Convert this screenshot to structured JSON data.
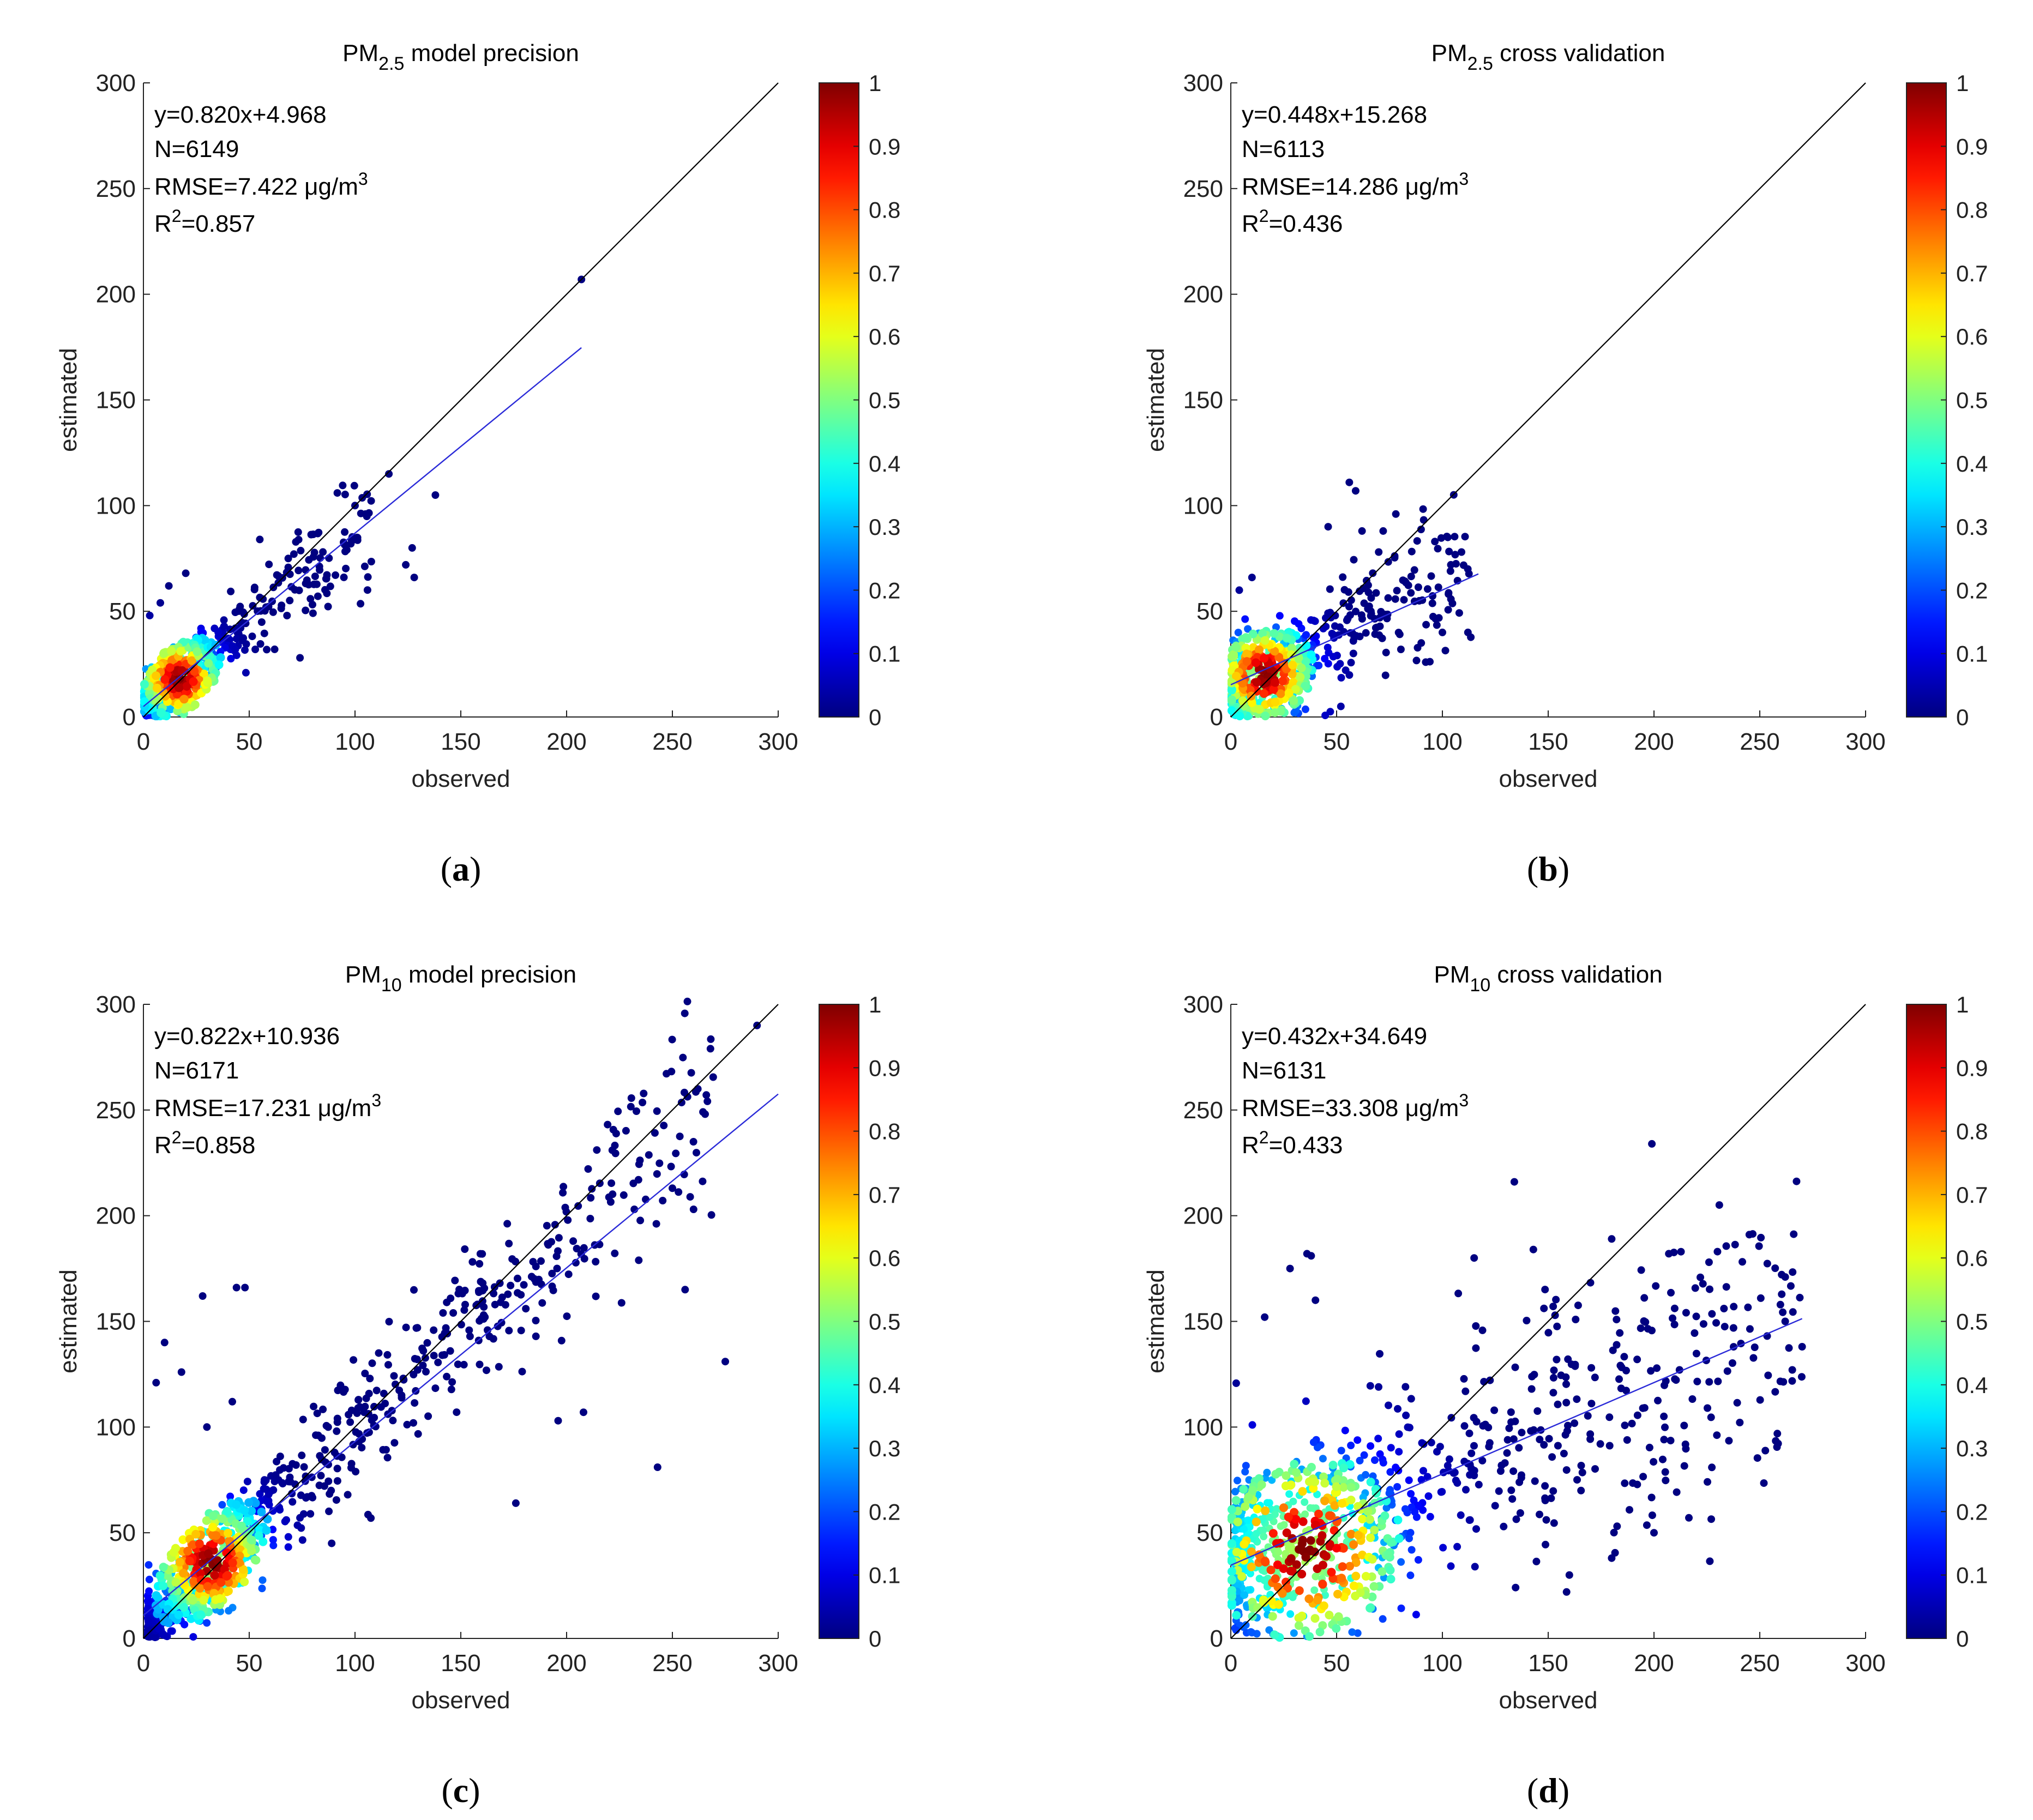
{
  "panels": [
    {
      "title_pre": "PM",
      "title_sub": "2.5",
      "title_post": " model precision",
      "eq": "y=0.820x+4.968",
      "n": "N=6149",
      "rmse_pre": "RMSE=7.422 μg/m",
      "rmse_sup": "3",
      "r2_pre": "R",
      "r2_sup": "2",
      "r2_post": "=0.857",
      "caption_open": "(",
      "caption_letter": "a",
      "caption_close": ")"
    },
    {
      "title_pre": "PM",
      "title_sub": "2.5",
      "title_post": " cross validation",
      "eq": "y=0.448x+15.268",
      "n": "N=6113",
      "rmse_pre": "RMSE=14.286 μg/m",
      "rmse_sup": "3",
      "r2_pre": "R",
      "r2_sup": "2",
      "r2_post": "=0.436",
      "caption_open": "(",
      "caption_letter": "b",
      "caption_close": ")"
    },
    {
      "title_pre": "PM",
      "title_sub": "10",
      "title_post": " model precision",
      "eq": "y=0.822x+10.936",
      "n": "N=6171",
      "rmse_pre": "RMSE=17.231 μg/m",
      "rmse_sup": "3",
      "r2_pre": "R",
      "r2_sup": "2",
      "r2_post": "=0.858",
      "caption_open": "(",
      "caption_letter": "c",
      "caption_close": ")"
    },
    {
      "title_pre": "PM",
      "title_sub": "10",
      "title_post": " cross validation",
      "eq": "y=0.432x+34.649",
      "n": "N=6131",
      "rmse_pre": "RMSE=33.308 μg/m",
      "rmse_sup": "3",
      "r2_pre": "R",
      "r2_sup": "2",
      "r2_post": "=0.433",
      "caption_open": "(",
      "caption_letter": "d",
      "caption_close": ")"
    }
  ],
  "chart_data": [
    {
      "type": "scatter",
      "title": "PM2.5 model precision",
      "xlabel": "observed",
      "ylabel": "estimated",
      "xlim": [
        0,
        300
      ],
      "ylim": [
        0,
        300
      ],
      "xticks": [
        "0",
        "50",
        "100",
        "150",
        "200",
        "250",
        "300"
      ],
      "yticks": [
        "0",
        "50",
        "100",
        "150",
        "200",
        "250",
        "300"
      ],
      "fit": {
        "slope": 0.82,
        "intercept": 4.968,
        "x_range": [
          0,
          207
        ]
      },
      "one_to_one": [
        0,
        300
      ],
      "colorbar": {
        "ticks": [
          "0",
          "0.1",
          "0.2",
          "0.3",
          "0.4",
          "0.5",
          "0.6",
          "0.7",
          "0.8",
          "0.9",
          "1"
        ],
        "range": [
          0,
          1
        ],
        "colors": [
          "#00008f",
          "#0000ff",
          "#0080ff",
          "#00ffff",
          "#80ff80",
          "#ffff00",
          "#ff8000",
          "#ff0000",
          "#800000"
        ]
      },
      "density_center": [
        17,
        18
      ],
      "cloud": {
        "xmin": 1,
        "xmax": 108,
        "slope": 0.82,
        "intercept": 4.968,
        "spread": 9,
        "count": 380,
        "seed": 11
      },
      "outliers": [
        [
          207,
          207
        ],
        [
          116,
          115
        ],
        [
          138,
          105
        ],
        [
          124,
          72
        ],
        [
          128,
          66
        ],
        [
          127,
          80
        ],
        [
          74,
          28
        ],
        [
          62,
          32
        ],
        [
          20,
          68
        ],
        [
          8,
          54
        ],
        [
          3,
          48
        ],
        [
          12,
          62
        ],
        [
          55,
          84
        ],
        [
          100,
          100
        ],
        [
          105,
          96
        ]
      ]
    },
    {
      "type": "scatter",
      "title": "PM2.5 cross validation",
      "xlabel": "observed",
      "ylabel": "estimated",
      "xlim": [
        0,
        300
      ],
      "ylim": [
        0,
        300
      ],
      "xticks": [
        "0",
        "50",
        "100",
        "150",
        "200",
        "250",
        "300"
      ],
      "yticks": [
        "0",
        "50",
        "100",
        "150",
        "200",
        "250",
        "300"
      ],
      "fit": {
        "slope": 0.448,
        "intercept": 15.268,
        "x_range": [
          0,
          117
        ]
      },
      "one_to_one": [
        0,
        300
      ],
      "colorbar": {
        "ticks": [
          "0",
          "0.1",
          "0.2",
          "0.3",
          "0.4",
          "0.5",
          "0.6",
          "0.7",
          "0.8",
          "0.9",
          "1"
        ],
        "range": [
          0,
          1
        ],
        "colors": [
          "#00008f",
          "#0000ff",
          "#0080ff",
          "#00ffff",
          "#80ff80",
          "#ffff00",
          "#ff8000",
          "#ff0000",
          "#800000"
        ]
      },
      "density_center": [
        16,
        20
      ],
      "cloud": {
        "xmin": 1,
        "xmax": 115,
        "slope": 0.448,
        "intercept": 15.268,
        "spread": 14,
        "count": 420,
        "seed": 23
      },
      "outliers": [
        [
          56,
          111
        ],
        [
          59,
          107
        ],
        [
          46,
          90
        ],
        [
          62,
          88
        ],
        [
          72,
          88
        ],
        [
          78,
          96
        ],
        [
          104,
          72
        ],
        [
          112,
          70
        ],
        [
          90,
          35
        ],
        [
          100,
          40
        ],
        [
          30,
          2
        ],
        [
          52,
          5
        ],
        [
          10,
          66
        ],
        [
          4,
          60
        ]
      ]
    },
    {
      "type": "scatter",
      "title": "PM10 model precision",
      "xlabel": "observed",
      "ylabel": "estimated",
      "xlim": [
        0,
        300
      ],
      "ylim": [
        0,
        300
      ],
      "xticks": [
        "0",
        "50",
        "100",
        "150",
        "200",
        "250",
        "300"
      ],
      "yticks": [
        "0",
        "50",
        "100",
        "150",
        "200",
        "250",
        "300"
      ],
      "fit": {
        "slope": 0.822,
        "intercept": 10.936,
        "x_range": [
          0,
          300
        ]
      },
      "one_to_one": [
        0,
        300
      ],
      "colorbar": {
        "ticks": [
          "0",
          "0.1",
          "0.2",
          "0.3",
          "0.4",
          "0.5",
          "0.6",
          "0.7",
          "0.8",
          "0.9",
          "1"
        ],
        "range": [
          0,
          1
        ],
        "colors": [
          "#00008f",
          "#0000ff",
          "#0080ff",
          "#00ffff",
          "#80ff80",
          "#ffff00",
          "#ff8000",
          "#ff0000",
          "#800000"
        ]
      },
      "density_center": [
        32,
        36
      ],
      "cloud": {
        "xmin": 2,
        "xmax": 270,
        "slope": 0.95,
        "intercept": 3,
        "spread": 16,
        "count": 700,
        "seed": 37
      },
      "outliers": [
        [
          290,
          290
        ],
        [
          262,
          260
        ],
        [
          268,
          279
        ],
        [
          275,
          131
        ],
        [
          243,
          81
        ],
        [
          256,
          165
        ],
        [
          28,
          162
        ],
        [
          44,
          166
        ],
        [
          48,
          166
        ],
        [
          208,
          107
        ],
        [
          196,
          103
        ],
        [
          176,
          64
        ],
        [
          10,
          140
        ],
        [
          18,
          126
        ],
        [
          6,
          121
        ],
        [
          30,
          100
        ],
        [
          42,
          112
        ],
        [
          260,
          203
        ],
        [
          232,
          203
        ],
        [
          250,
          213
        ]
      ]
    },
    {
      "type": "scatter",
      "title": "PM10 cross validation",
      "xlabel": "observed",
      "ylabel": "estimated",
      "xlim": [
        0,
        300
      ],
      "ylim": [
        0,
        300
      ],
      "xticks": [
        "0",
        "50",
        "100",
        "150",
        "200",
        "250",
        "300"
      ],
      "yticks": [
        "0",
        "50",
        "100",
        "150",
        "200",
        "250",
        "300"
      ],
      "fit": {
        "slope": 0.432,
        "intercept": 34.649,
        "x_range": [
          0,
          270
        ]
      },
      "one_to_one": [
        0,
        300
      ],
      "colorbar": {
        "ticks": [
          "0",
          "0.1",
          "0.2",
          "0.3",
          "0.4",
          "0.5",
          "0.6",
          "0.7",
          "0.8",
          "0.9",
          "1"
        ],
        "range": [
          0,
          1
        ],
        "colors": [
          "#00008f",
          "#0000ff",
          "#0080ff",
          "#00ffff",
          "#80ff80",
          "#ffff00",
          "#ff8000",
          "#ff0000",
          "#800000"
        ]
      },
      "density_center": [
        35,
        42
      ],
      "cloud": {
        "xmin": 2,
        "xmax": 270,
        "slope": 0.432,
        "intercept": 34.649,
        "spread": 28,
        "count": 760,
        "seed": 51
      },
      "outliers": [
        [
          199,
          234
        ],
        [
          134,
          216
        ],
        [
          115,
          180
        ],
        [
          143,
          184
        ],
        [
          180,
          189
        ],
        [
          207,
          182
        ],
        [
          226,
          178
        ],
        [
          230,
          183
        ],
        [
          36,
          182
        ],
        [
          38,
          181
        ],
        [
          16,
          152
        ],
        [
          28,
          175
        ],
        [
          40,
          160
        ],
        [
          270,
          138
        ],
        [
          262,
          150
        ],
        [
          200,
          50
        ],
        [
          160,
          30
        ],
        [
          180,
          38
        ],
        [
          20,
          2
        ],
        [
          36,
          1
        ]
      ]
    }
  ]
}
